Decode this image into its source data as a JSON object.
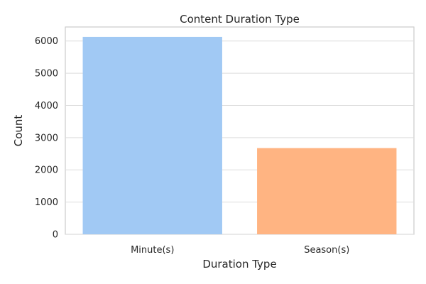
{
  "chart_data": {
    "type": "bar",
    "title": "Content Duration Type",
    "xlabel": "Duration Type",
    "ylabel": "Count",
    "categories": [
      "Minute(s)",
      "Season(s)"
    ],
    "values": [
      6128,
      2676
    ],
    "colors": [
      "#a1c9f4",
      "#ffb482"
    ],
    "ylim": [
      0,
      6435
    ],
    "yticks": [
      0,
      1000,
      2000,
      3000,
      4000,
      5000,
      6000
    ],
    "grid": true
  }
}
